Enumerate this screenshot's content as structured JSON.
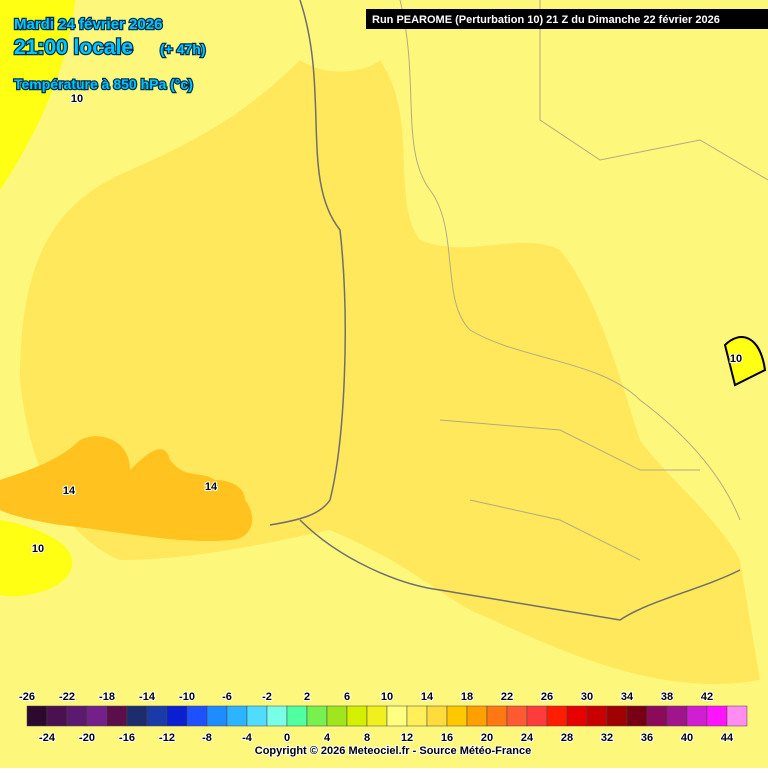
{
  "header": {
    "date": "Mardi 24 février 2026",
    "time": "21:00 locale",
    "lead": "(+ 47h)",
    "variable": "Température à 850 hPa (°c)",
    "run": "Run PEAROME (Perturbation 10) 21 Z du Dimanche 22 février 2026"
  },
  "map_labels": [
    "10",
    "14",
    "14",
    "10",
    "10"
  ],
  "legend": {
    "ticks_top": [
      -26,
      -22,
      -18,
      -14,
      -10,
      -6,
      -2,
      2,
      6,
      10,
      14,
      18,
      22,
      26,
      30,
      34,
      38,
      42
    ],
    "ticks_bottom": [
      -24,
      -20,
      -16,
      -12,
      -8,
      -4,
      0,
      4,
      8,
      12,
      16,
      20,
      24,
      28,
      32,
      36,
      40,
      44
    ],
    "colors": [
      "#2d0a2d",
      "#4a1050",
      "#5c1a6e",
      "#73208a",
      "#5a0f4a",
      "#1c2d6e",
      "#1a3aa8",
      "#0a1ed2",
      "#1e50ff",
      "#1e8cff",
      "#2db4ff",
      "#50dcff",
      "#78ffe6",
      "#50ffa0",
      "#78f050",
      "#a0e61e",
      "#d2f000",
      "#f0f01e",
      "#ffff80",
      "#fff05a",
      "#ffdc3c",
      "#ffc800",
      "#ffa000",
      "#ff7814",
      "#ff5a32",
      "#ff3c3c",
      "#ff1e00",
      "#e60000",
      "#c80000",
      "#a00000",
      "#780014",
      "#8c0a5a",
      "#a0148c",
      "#d21ed2",
      "#ff14ff",
      "#ff8cf0"
    ]
  },
  "footer": {
    "copyright": "Copyright © 2026 Meteociel.fr - Source Météo-France"
  }
}
